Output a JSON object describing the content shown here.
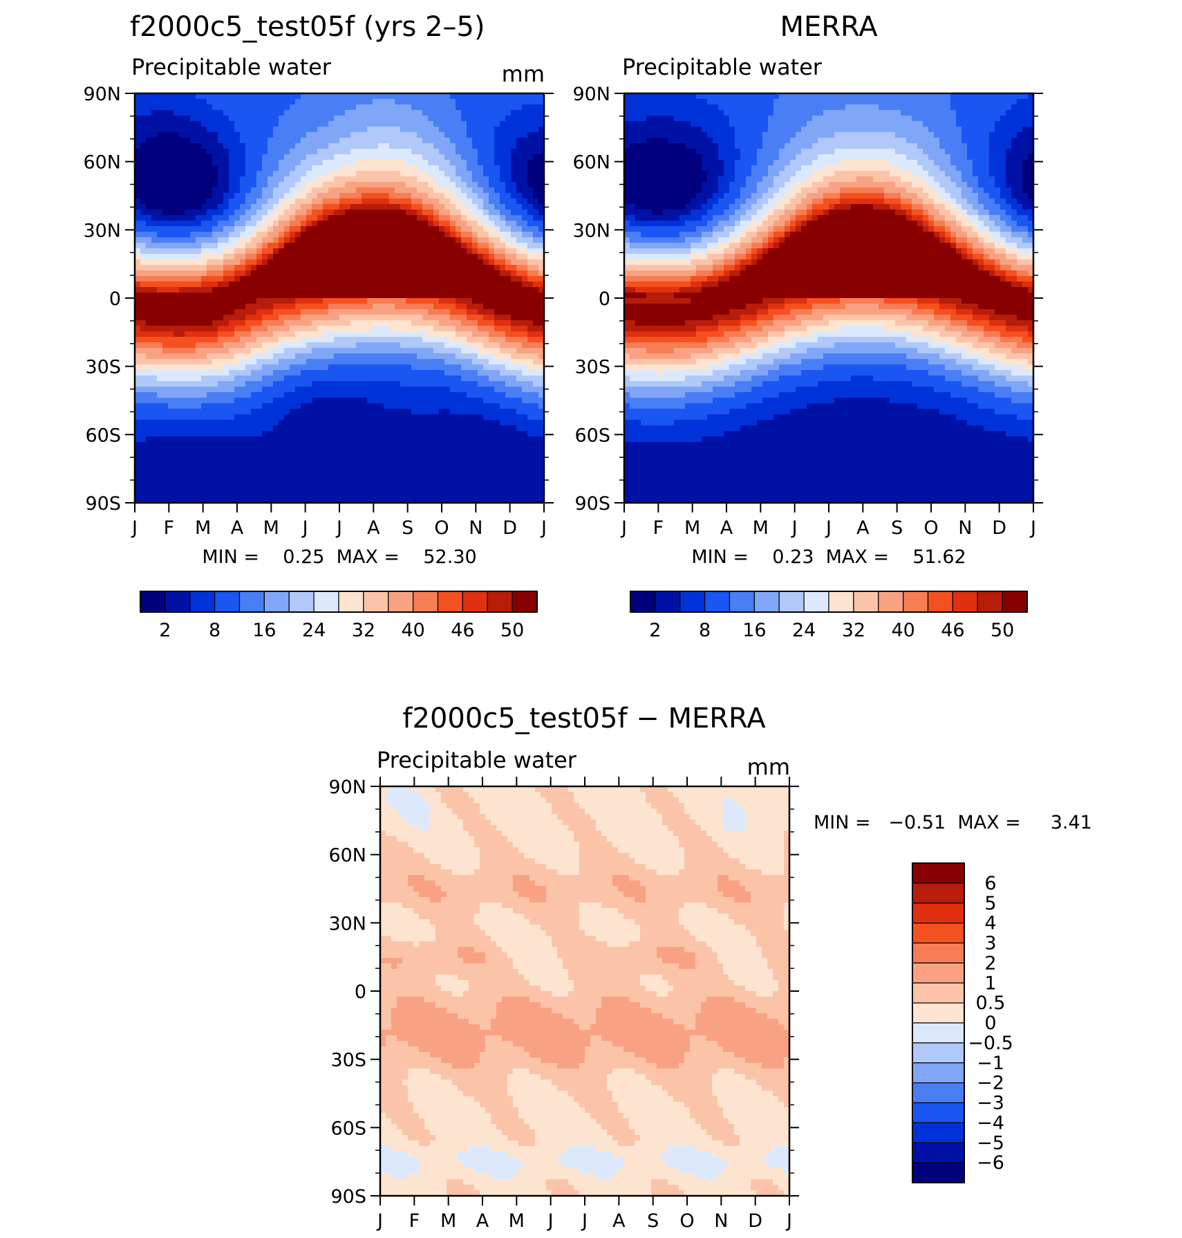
{
  "chart_data": [
    {
      "type": "heatmap",
      "title": "f2000c5_test05f (yrs 2–5)",
      "subtitle": "Precipitable water",
      "units": "mm",
      "x_tick_labels": [
        "J",
        "F",
        "M",
        "A",
        "M",
        "J",
        "J",
        "A",
        "S",
        "O",
        "N",
        "D",
        "J"
      ],
      "y_tick_labels": [
        "90N",
        "60N",
        "30N",
        "0",
        "30S",
        "60S",
        "90S"
      ],
      "yrange": [
        90,
        -90
      ],
      "stats_text": "MIN =    0.25  MAX =    52.30",
      "min": 0.25,
      "max": 52.3,
      "colorbar": {
        "orientation": "horizontal",
        "labels": [
          "2",
          "8",
          "16",
          "24",
          "32",
          "40",
          "46",
          "50"
        ],
        "colors": [
          "#00007f",
          "#0012a6",
          "#0032d9",
          "#1a56f2",
          "#4a7ef5",
          "#80a6f7",
          "#b0c8fa",
          "#dce9fc",
          "#fde4d0",
          "#fbc4a9",
          "#f9a283",
          "#f77d54",
          "#f5501f",
          "#e03010",
          "#b81c0a",
          "#880000"
        ]
      }
    },
    {
      "type": "heatmap",
      "title": "MERRA",
      "subtitle": "Precipitable water",
      "x_tick_labels": [
        "J",
        "F",
        "M",
        "A",
        "M",
        "J",
        "J",
        "A",
        "S",
        "O",
        "N",
        "D",
        "J"
      ],
      "y_tick_labels": [
        "90N",
        "60N",
        "30N",
        "0",
        "30S",
        "60S",
        "90S"
      ],
      "yrange": [
        90,
        -90
      ],
      "stats_text": "MIN =    0.23  MAX =    51.62",
      "min": 0.23,
      "max": 51.62,
      "colorbar": {
        "orientation": "horizontal",
        "labels": [
          "2",
          "8",
          "16",
          "24",
          "32",
          "40",
          "46",
          "50"
        ],
        "colors": [
          "#00007f",
          "#0012a6",
          "#0032d9",
          "#1a56f2",
          "#4a7ef5",
          "#80a6f7",
          "#b0c8fa",
          "#dce9fc",
          "#fde4d0",
          "#fbc4a9",
          "#f9a283",
          "#f77d54",
          "#f5501f",
          "#e03010",
          "#b81c0a",
          "#880000"
        ]
      }
    },
    {
      "type": "heatmap",
      "title": "f2000c5_test05f − MERRA",
      "subtitle": "Precipitable water",
      "units": "mm",
      "x_tick_labels": [
        "J",
        "F",
        "M",
        "A",
        "M",
        "J",
        "J",
        "A",
        "S",
        "O",
        "N",
        "D",
        "J"
      ],
      "y_tick_labels": [
        "90N",
        "60N",
        "30N",
        "0",
        "30S",
        "60S",
        "90S"
      ],
      "yrange": [
        90,
        -90
      ],
      "stats_text": "MIN =   −0.51  MAX =     3.41",
      "min": -0.51,
      "max": 3.41,
      "colorbar": {
        "orientation": "vertical",
        "labels": [
          "6",
          "5",
          "4",
          "3",
          "2",
          "1",
          "0.5",
          "0",
          "−0.5",
          "−1",
          "−2",
          "−3",
          "−4",
          "−5",
          "−6"
        ],
        "colors": [
          "#880000",
          "#b81c0a",
          "#e03010",
          "#f5501f",
          "#f77d54",
          "#f9a283",
          "#fbc4a9",
          "#fde4d0",
          "#dce9fc",
          "#b0c8fa",
          "#80a6f7",
          "#4a7ef5",
          "#1a56f2",
          "#0032d9",
          "#0012a6",
          "#00007f"
        ]
      }
    }
  ]
}
